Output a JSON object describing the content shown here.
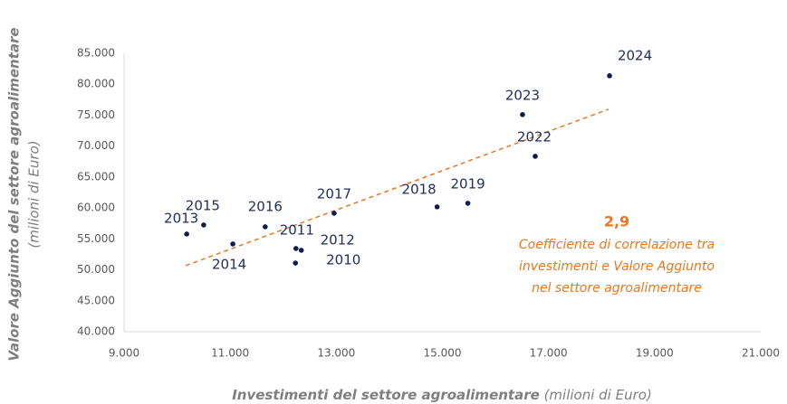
{
  "chart_data": {
    "type": "scatter",
    "x_label": [
      "Investimenti del settore agroalimentare",
      "(milioni di Euro)"
    ],
    "y_label": [
      "Valore Aggiunto del settore agroalimentare",
      "(milioni di Euro)"
    ],
    "labels": [
      "2010",
      "2011",
      "2012",
      "2013",
      "2014",
      "2015",
      "2016",
      "2017",
      "2018",
      "2019",
      "2022",
      "2023",
      "2024"
    ],
    "x": [
      12230,
      12240,
      12340,
      10180,
      11050,
      10500,
      11660,
      12960,
      14900,
      15480,
      16750,
      16510,
      18150
    ],
    "y": [
      51100,
      53450,
      53160,
      55790,
      54180,
      57250,
      56960,
      59150,
      60180,
      60760,
      68360,
      75090,
      81370
    ],
    "color": "#0d1b4f",
    "trendline": {
      "x": [
        10160,
        18130
      ],
      "y": [
        50670,
        75960
      ],
      "color": "#e87722"
    },
    "annotation": {
      "value": "2,9",
      "lines": [
        "Coefficiente di correlazione tra",
        "investimenti e Valore Aggiunto",
        "nel settore agroalimentare"
      ],
      "color": "#e87722"
    },
    "xlim": [
      9000,
      21000
    ],
    "xticks": [
      {
        "value": 9000,
        "label": "9.000"
      },
      {
        "value": 11000,
        "label": "11.000"
      },
      {
        "value": 13000,
        "label": "13.000"
      },
      {
        "value": 15000,
        "label": "15.000"
      },
      {
        "value": 17000,
        "label": "17.000"
      },
      {
        "value": 19000,
        "label": "19.000"
      },
      {
        "value": 21000,
        "label": "21.000"
      }
    ],
    "ylim": [
      40000,
      85000
    ],
    "yticks": [
      {
        "value": 40000,
        "label": "40.000"
      },
      {
        "value": 45000,
        "label": "45.000"
      },
      {
        "value": 50000,
        "label": "50.000"
      },
      {
        "value": 55000,
        "label": "55.000"
      },
      {
        "value": 60000,
        "label": "60.000"
      },
      {
        "value": 65000,
        "label": "65.000"
      },
      {
        "value": 70000,
        "label": "70.000"
      },
      {
        "value": 75000,
        "label": "75.000"
      },
      {
        "value": 80000,
        "label": "80.000"
      },
      {
        "value": 85000,
        "label": "85.000"
      }
    ]
  }
}
